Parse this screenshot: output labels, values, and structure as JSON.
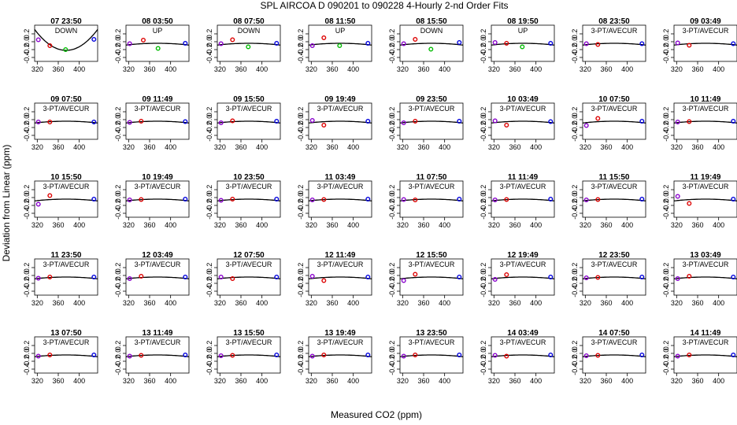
{
  "chart_data": {
    "type": "scatter",
    "title": "SPL   AIRCOA D   090201 to 090228   4-Hourly 2-nd Order Fits",
    "xlabel": "Measured CO2 (ppm)",
    "ylabel": "Deviation from Linear (ppm)",
    "xlim": [
      315,
      435
    ],
    "ylim": [
      -0.5,
      0.42
    ],
    "x_ticks": [
      320,
      360,
      400
    ],
    "y_ticks": [
      -0.4,
      -0.2,
      0.0,
      0.2
    ],
    "x_tick_labels": [
      "320",
      "360",
      "400"
    ],
    "y_tick_labels": [
      "-0.4",
      "-0.2",
      "0.0",
      "0.2"
    ],
    "colors": {
      "low": "#8800cc",
      "mid": "#dd0000",
      "mid2": "#00bb00",
      "high": "#0000dd",
      "fit": "#000000"
    },
    "panels": [
      {
        "time": "07 23:50",
        "mode": "DOWN",
        "fit": [
          0.7,
          0.2,
          -0.00208
        ],
        "points": [
          [
            322,
            0.05,
            "low"
          ],
          [
            344,
            -0.1,
            "mid"
          ],
          [
            374,
            -0.2,
            "mid2"
          ],
          [
            428,
            0.06,
            "high"
          ]
        ]
      },
      {
        "time": "08 03:50",
        "mode": "UP",
        "fit": [
          0.7,
          0.1,
          -0.0004
        ],
        "points": [
          [
            322,
            -0.05,
            "low"
          ],
          [
            348,
            0.04,
            "mid"
          ],
          [
            376,
            -0.17,
            "mid2"
          ],
          [
            428,
            -0.04,
            "high"
          ]
        ]
      },
      {
        "time": "08 07:50",
        "mode": "DOWN",
        "fit": [
          0.7,
          0.1,
          -0.0004
        ],
        "points": [
          [
            322,
            -0.05,
            "low"
          ],
          [
            344,
            0.05,
            "mid"
          ],
          [
            374,
            -0.13,
            "mid2"
          ],
          [
            428,
            -0.04,
            "high"
          ]
        ]
      },
      {
        "time": "08 11:50",
        "mode": "UP",
        "fit": [
          0.7,
          0.1,
          -0.0004
        ],
        "points": [
          [
            322,
            -0.1,
            "low"
          ],
          [
            344,
            0.1,
            "mid"
          ],
          [
            374,
            -0.1,
            "mid2"
          ],
          [
            428,
            -0.04,
            "high"
          ]
        ]
      },
      {
        "time": "08 15:50",
        "mode": "DOWN",
        "fit": [
          0.7,
          0.1,
          -0.0004
        ],
        "points": [
          [
            322,
            -0.05,
            "low"
          ],
          [
            344,
            0.06,
            "mid"
          ],
          [
            374,
            -0.19,
            "mid2"
          ],
          [
            428,
            -0.02,
            "high"
          ]
        ]
      },
      {
        "time": "08 19:50",
        "mode": "UP",
        "fit": [
          0.7,
          0.1,
          -0.0004
        ],
        "points": [
          [
            322,
            -0.02,
            "low"
          ],
          [
            344,
            -0.04,
            "mid"
          ],
          [
            374,
            -0.13,
            "mid2"
          ],
          [
            428,
            -0.04,
            "high"
          ]
        ]
      },
      {
        "time": "08 23:50",
        "mode": "3-PT/AVECUR",
        "fit": [
          0.7,
          0.1,
          -0.0004
        ],
        "points": [
          [
            322,
            -0.05,
            "low"
          ],
          [
            344,
            -0.07,
            "mid"
          ],
          [
            428,
            -0.05,
            "high"
          ]
        ]
      },
      {
        "time": "09 03:49",
        "mode": "3-PT/AVECUR",
        "fit": [
          0.7,
          0.1,
          -0.0004
        ],
        "points": [
          [
            322,
            -0.03,
            "low"
          ],
          [
            344,
            -0.09,
            "mid"
          ],
          [
            428,
            -0.05,
            "high"
          ]
        ]
      },
      {
        "time": "09 07:50",
        "mode": "3-PT/AVECUR",
        "fit": [
          0.7,
          0.1,
          -0.0004
        ],
        "points": [
          [
            322,
            -0.06,
            "low"
          ],
          [
            344,
            -0.06,
            "mid"
          ],
          [
            428,
            -0.06,
            "high"
          ]
        ]
      },
      {
        "time": "09 11:49",
        "mode": "3-PT/AVECUR",
        "fit": [
          0.7,
          0.1,
          -0.0004
        ],
        "points": [
          [
            322,
            -0.07,
            "low"
          ],
          [
            344,
            -0.04,
            "mid"
          ],
          [
            428,
            -0.05,
            "high"
          ]
        ]
      },
      {
        "time": "09 15:50",
        "mode": "3-PT/AVECUR",
        "fit": [
          0.7,
          0.1,
          -0.0004
        ],
        "points": [
          [
            322,
            -0.08,
            "low"
          ],
          [
            344,
            -0.03,
            "mid"
          ],
          [
            428,
            -0.04,
            "high"
          ]
        ]
      },
      {
        "time": "09 19:49",
        "mode": "3-PT/AVECUR",
        "fit": [
          0.7,
          0.1,
          -0.0004
        ],
        "points": [
          [
            322,
            -0.02,
            "low"
          ],
          [
            344,
            -0.14,
            "mid"
          ],
          [
            428,
            -0.04,
            "high"
          ]
        ]
      },
      {
        "time": "09 23:50",
        "mode": "3-PT/AVECUR",
        "fit": [
          0.7,
          0.1,
          -0.0004
        ],
        "points": [
          [
            322,
            -0.08,
            "low"
          ],
          [
            344,
            -0.04,
            "mid"
          ],
          [
            428,
            -0.04,
            "high"
          ]
        ]
      },
      {
        "time": "10 03:49",
        "mode": "3-PT/AVECUR",
        "fit": [
          0.7,
          0.1,
          -0.0004
        ],
        "points": [
          [
            322,
            -0.03,
            "low"
          ],
          [
            344,
            -0.14,
            "mid"
          ],
          [
            428,
            -0.05,
            "high"
          ]
        ]
      },
      {
        "time": "10 07:50",
        "mode": "3-PT/AVECUR",
        "fit": [
          0.7,
          0.1,
          -0.0004
        ],
        "points": [
          [
            322,
            -0.15,
            "low"
          ],
          [
            344,
            0.03,
            "mid"
          ],
          [
            428,
            -0.04,
            "high"
          ]
        ]
      },
      {
        "time": "10 11:49",
        "mode": "3-PT/AVECUR",
        "fit": [
          0.7,
          0.1,
          -0.0004
        ],
        "points": [
          [
            322,
            -0.06,
            "low"
          ],
          [
            344,
            -0.05,
            "mid"
          ],
          [
            428,
            -0.04,
            "high"
          ]
        ]
      },
      {
        "time": "10 15:50",
        "mode": "3-PT/AVECUR",
        "fit": [
          0.7,
          0.1,
          -0.0004
        ],
        "points": [
          [
            322,
            -0.17,
            "low"
          ],
          [
            344,
            0.05,
            "mid"
          ],
          [
            428,
            -0.04,
            "high"
          ]
        ]
      },
      {
        "time": "10 19:49",
        "mode": "3-PT/AVECUR",
        "fit": [
          0.7,
          0.1,
          -0.0004
        ],
        "points": [
          [
            322,
            -0.06,
            "low"
          ],
          [
            344,
            -0.05,
            "mid"
          ],
          [
            428,
            -0.04,
            "high"
          ]
        ]
      },
      {
        "time": "10 23:50",
        "mode": "3-PT/AVECUR",
        "fit": [
          0.7,
          0.1,
          -0.0004
        ],
        "points": [
          [
            322,
            -0.07,
            "low"
          ],
          [
            344,
            -0.04,
            "mid"
          ],
          [
            428,
            -0.04,
            "high"
          ]
        ]
      },
      {
        "time": "11 03:49",
        "mode": "3-PT/AVECUR",
        "fit": [
          0.7,
          0.1,
          -0.0004
        ],
        "points": [
          [
            322,
            -0.06,
            "low"
          ],
          [
            344,
            -0.05,
            "mid"
          ],
          [
            428,
            -0.04,
            "high"
          ]
        ]
      },
      {
        "time": "11 07:50",
        "mode": "3-PT/AVECUR",
        "fit": [
          0.7,
          0.1,
          -0.0004
        ],
        "points": [
          [
            322,
            -0.05,
            "low"
          ],
          [
            344,
            -0.06,
            "mid"
          ],
          [
            428,
            -0.04,
            "high"
          ]
        ]
      },
      {
        "time": "11 11:49",
        "mode": "3-PT/AVECUR",
        "fit": [
          0.7,
          0.1,
          -0.0004
        ],
        "points": [
          [
            322,
            -0.06,
            "low"
          ],
          [
            344,
            -0.05,
            "mid"
          ],
          [
            428,
            -0.04,
            "high"
          ]
        ]
      },
      {
        "time": "11 15:50",
        "mode": "3-PT/AVECUR",
        "fit": [
          0.7,
          0.1,
          -0.0004
        ],
        "points": [
          [
            322,
            -0.06,
            "low"
          ],
          [
            344,
            -0.05,
            "mid"
          ],
          [
            428,
            -0.04,
            "high"
          ]
        ]
      },
      {
        "time": "11 19:49",
        "mode": "3-PT/AVECUR",
        "fit": [
          0.7,
          0.1,
          -0.0004
        ],
        "points": [
          [
            322,
            0.03,
            "low"
          ],
          [
            344,
            -0.15,
            "mid"
          ],
          [
            428,
            -0.04,
            "high"
          ]
        ]
      },
      {
        "time": "11 23:50",
        "mode": "3-PT/AVECUR",
        "fit": [
          0.7,
          0.1,
          -0.0004
        ],
        "points": [
          [
            322,
            -0.07,
            "low"
          ],
          [
            344,
            -0.04,
            "mid"
          ],
          [
            428,
            -0.04,
            "high"
          ]
        ]
      },
      {
        "time": "12 03:49",
        "mode": "3-PT/AVECUR",
        "fit": [
          0.7,
          0.1,
          -0.0004
        ],
        "points": [
          [
            322,
            -0.08,
            "low"
          ],
          [
            344,
            -0.02,
            "mid"
          ],
          [
            428,
            -0.04,
            "high"
          ]
        ]
      },
      {
        "time": "12 07:50",
        "mode": "3-PT/AVECUR",
        "fit": [
          0.7,
          0.1,
          -0.0004
        ],
        "points": [
          [
            322,
            -0.04,
            "low"
          ],
          [
            344,
            -0.08,
            "mid"
          ],
          [
            428,
            -0.04,
            "high"
          ]
        ]
      },
      {
        "time": "12 11:49",
        "mode": "3-PT/AVECUR",
        "fit": [
          0.7,
          0.1,
          -0.0004
        ],
        "points": [
          [
            322,
            -0.02,
            "low"
          ],
          [
            344,
            -0.13,
            "mid"
          ],
          [
            428,
            -0.04,
            "high"
          ]
        ]
      },
      {
        "time": "12 15:50",
        "mode": "3-PT/AVECUR",
        "fit": [
          0.7,
          0.1,
          -0.0004
        ],
        "points": [
          [
            322,
            -0.13,
            "low"
          ],
          [
            344,
            0.03,
            "mid"
          ],
          [
            428,
            -0.04,
            "high"
          ]
        ]
      },
      {
        "time": "12 19:49",
        "mode": "3-PT/AVECUR",
        "fit": [
          0.7,
          0.1,
          -0.0004
        ],
        "points": [
          [
            322,
            -0.1,
            "low"
          ],
          [
            344,
            0.02,
            "mid"
          ],
          [
            428,
            -0.04,
            "high"
          ]
        ]
      },
      {
        "time": "12 23:50",
        "mode": "3-PT/AVECUR",
        "fit": [
          0.7,
          0.1,
          -0.0004
        ],
        "points": [
          [
            322,
            -0.06,
            "low"
          ],
          [
            344,
            -0.05,
            "mid"
          ],
          [
            428,
            -0.04,
            "high"
          ]
        ]
      },
      {
        "time": "13 03:49",
        "mode": "3-PT/AVECUR",
        "fit": [
          0.7,
          0.1,
          -0.0004
        ],
        "points": [
          [
            322,
            -0.08,
            "low"
          ],
          [
            344,
            -0.02,
            "mid"
          ],
          [
            428,
            -0.04,
            "high"
          ]
        ]
      },
      {
        "time": "13 07:50",
        "mode": "3-PT/AVECUR",
        "fit": [
          0.7,
          0.1,
          -0.0004
        ],
        "points": [
          [
            322,
            -0.07,
            "low"
          ],
          [
            344,
            -0.04,
            "mid"
          ],
          [
            428,
            -0.04,
            "high"
          ]
        ]
      },
      {
        "time": "13 11:49",
        "mode": "3-PT/AVECUR",
        "fit": [
          0.7,
          0.1,
          -0.0004
        ],
        "points": [
          [
            322,
            -0.07,
            "low"
          ],
          [
            344,
            -0.05,
            "mid"
          ],
          [
            428,
            -0.04,
            "high"
          ]
        ]
      },
      {
        "time": "13 15:50",
        "mode": "3-PT/AVECUR",
        "fit": [
          0.7,
          0.1,
          -0.0004
        ],
        "points": [
          [
            322,
            -0.06,
            "low"
          ],
          [
            344,
            -0.05,
            "mid"
          ],
          [
            428,
            -0.04,
            "high"
          ]
        ]
      },
      {
        "time": "13 19:49",
        "mode": "3-PT/AVECUR",
        "fit": [
          0.7,
          0.1,
          -0.0004
        ],
        "points": [
          [
            322,
            -0.07,
            "low"
          ],
          [
            344,
            -0.04,
            "mid"
          ],
          [
            428,
            -0.04,
            "high"
          ]
        ]
      },
      {
        "time": "13 23:50",
        "mode": "3-PT/AVECUR",
        "fit": [
          0.7,
          0.1,
          -0.0004
        ],
        "points": [
          [
            322,
            -0.07,
            "low"
          ],
          [
            344,
            -0.04,
            "mid"
          ],
          [
            428,
            -0.04,
            "high"
          ]
        ]
      },
      {
        "time": "14 03:49",
        "mode": "3-PT/AVECUR",
        "fit": [
          0.7,
          0.1,
          -0.0004
        ],
        "points": [
          [
            322,
            -0.05,
            "low"
          ],
          [
            344,
            -0.07,
            "mid"
          ],
          [
            428,
            -0.04,
            "high"
          ]
        ]
      },
      {
        "time": "14 07:50",
        "mode": "3-PT/AVECUR",
        "fit": [
          0.7,
          0.1,
          -0.0004
        ],
        "points": [
          [
            322,
            -0.06,
            "low"
          ],
          [
            344,
            -0.05,
            "mid"
          ],
          [
            428,
            -0.04,
            "high"
          ]
        ]
      },
      {
        "time": "14 11:49",
        "mode": "3-PT/AVECUR",
        "fit": [
          0.7,
          0.1,
          -0.0004
        ],
        "points": [
          [
            322,
            -0.07,
            "low"
          ],
          [
            344,
            -0.04,
            "mid"
          ],
          [
            428,
            -0.04,
            "high"
          ]
        ]
      }
    ]
  }
}
